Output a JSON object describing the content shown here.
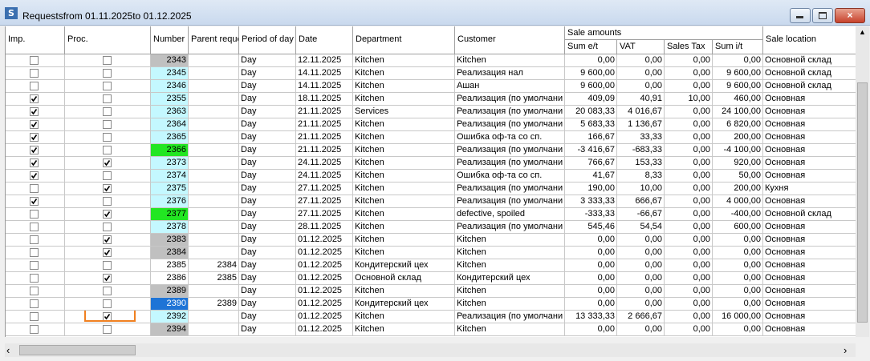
{
  "window": {
    "title": "Requestsfrom 01.11.2025to 01.12.2025"
  },
  "table": {
    "columns": [
      "Imp.",
      "Proc.",
      "Number",
      "Parent reque",
      "Period of day",
      "Date",
      "Department",
      "Customer",
      "Sum e/t",
      "VAT",
      "Sales Tax",
      "Sum i/t",
      "Sale location"
    ],
    "group_header": "Sale amounts",
    "rows": [
      {
        "imp": false,
        "proc": false,
        "number": "2343",
        "number_color": "#c0c0c0",
        "period": "Day",
        "date": "12.11.2025",
        "department": "Kitchen",
        "customer": "Kitchen",
        "sum_et": "0,00",
        "vat": "0,00",
        "sales_tax": "0,00",
        "sum_it": "0,00",
        "location": "Основной склад"
      },
      {
        "imp": false,
        "proc": false,
        "number": "2345",
        "number_color": "#c4f8ff",
        "period": "Day",
        "date": "14.11.2025",
        "department": "Kitchen",
        "customer": "Реализация нал",
        "sum_et": "9 600,00",
        "vat": "0,00",
        "sales_tax": "0,00",
        "sum_it": "9 600,00",
        "location": "Основной склад"
      },
      {
        "imp": false,
        "proc": false,
        "number": "2346",
        "number_color": "#c4f8ff",
        "period": "Day",
        "date": "14.11.2025",
        "department": "Kitchen",
        "customer": "Ашан",
        "sum_et": "9 600,00",
        "vat": "0,00",
        "sales_tax": "0,00",
        "sum_it": "9 600,00",
        "location": "Основной склад"
      },
      {
        "imp": true,
        "proc": false,
        "number": "2355",
        "number_color": "#c4f8ff",
        "period": "Day",
        "date": "18.11.2025",
        "department": "Kitchen",
        "customer": "Реализация (по умолчани",
        "sum_et": "409,09",
        "vat": "40,91",
        "sales_tax": "10,00",
        "sum_it": "460,00",
        "location": "Основная"
      },
      {
        "imp": true,
        "proc": false,
        "number": "2363",
        "number_color": "#c4f8ff",
        "period": "Day",
        "date": "21.11.2025",
        "department": "Services",
        "customer": "Реализация (по умолчани",
        "sum_et": "20 083,33",
        "vat": "4 016,67",
        "sales_tax": "0,00",
        "sum_it": "24 100,00",
        "location": "Основная"
      },
      {
        "imp": true,
        "proc": false,
        "number": "2364",
        "number_color": "#c4f8ff",
        "period": "Day",
        "date": "21.11.2025",
        "department": "Kitchen",
        "customer": "Реализация (по умолчани",
        "sum_et": "5 683,33",
        "vat": "1 136,67",
        "sales_tax": "0,00",
        "sum_it": "6 820,00",
        "location": "Основная"
      },
      {
        "imp": true,
        "proc": false,
        "number": "2365",
        "number_color": "#c4f8ff",
        "period": "Day",
        "date": "21.11.2025",
        "department": "Kitchen",
        "customer": "Ошибка оф-та со сп.",
        "sum_et": "166,67",
        "vat": "33,33",
        "sales_tax": "0,00",
        "sum_it": "200,00",
        "location": "Основная"
      },
      {
        "imp": true,
        "proc": false,
        "number": "2366",
        "number_color": "#22e622",
        "period": "Day",
        "date": "21.11.2025",
        "department": "Kitchen",
        "customer": "Реализация (по умолчани",
        "sum_et": "-3 416,67",
        "vat": "-683,33",
        "sales_tax": "0,00",
        "sum_it": "-4 100,00",
        "location": "Основная"
      },
      {
        "imp": true,
        "proc": true,
        "number": "2373",
        "number_color": "#c4f8ff",
        "period": "Day",
        "date": "24.11.2025",
        "department": "Kitchen",
        "customer": "Реализация (по умолчани",
        "sum_et": "766,67",
        "vat": "153,33",
        "sales_tax": "0,00",
        "sum_it": "920,00",
        "location": "Основная"
      },
      {
        "imp": true,
        "proc": false,
        "number": "2374",
        "number_color": "#c4f8ff",
        "period": "Day",
        "date": "24.11.2025",
        "department": "Kitchen",
        "customer": "Ошибка оф-та со сп.",
        "sum_et": "41,67",
        "vat": "8,33",
        "sales_tax": "0,00",
        "sum_it": "50,00",
        "location": "Основная"
      },
      {
        "imp": false,
        "proc": true,
        "number": "2375",
        "number_color": "#c4f8ff",
        "period": "Day",
        "date": "27.11.2025",
        "department": "Kitchen",
        "customer": "Реализация (по умолчани",
        "sum_et": "190,00",
        "vat": "10,00",
        "sales_tax": "0,00",
        "sum_it": "200,00",
        "location": "Кухня"
      },
      {
        "imp": true,
        "proc": false,
        "number": "2376",
        "number_color": "#c4f8ff",
        "period": "Day",
        "date": "27.11.2025",
        "department": "Kitchen",
        "customer": "Реализация (по умолчани",
        "sum_et": "3 333,33",
        "vat": "666,67",
        "sales_tax": "0,00",
        "sum_it": "4 000,00",
        "location": "Основная"
      },
      {
        "imp": false,
        "proc": true,
        "number": "2377",
        "number_color": "#22e622",
        "period": "Day",
        "date": "27.11.2025",
        "department": "Kitchen",
        "customer": "defective, spoiled",
        "sum_et": "-333,33",
        "vat": "-66,67",
        "sales_tax": "0,00",
        "sum_it": "-400,00",
        "location": "Основной склад"
      },
      {
        "imp": false,
        "proc": false,
        "number": "2378",
        "number_color": "#c4f8ff",
        "period": "Day",
        "date": "28.11.2025",
        "department": "Kitchen",
        "customer": "Реализация (по умолчани",
        "sum_et": "545,46",
        "vat": "54,54",
        "sales_tax": "0,00",
        "sum_it": "600,00",
        "location": "Основная"
      },
      {
        "imp": false,
        "proc": true,
        "number": "2383",
        "number_color": "#c0c0c0",
        "period": "Day",
        "date": "01.12.2025",
        "department": "Kitchen",
        "customer": "Kitchen",
        "sum_et": "0,00",
        "vat": "0,00",
        "sales_tax": "0,00",
        "sum_it": "0,00",
        "location": "Основная"
      },
      {
        "imp": false,
        "proc": true,
        "number": "2384",
        "number_color": "#c0c0c0",
        "period": "Day",
        "date": "01.12.2025",
        "department": "Kitchen",
        "customer": "Kitchen",
        "sum_et": "0,00",
        "vat": "0,00",
        "sales_tax": "0,00",
        "sum_it": "0,00",
        "location": "Основная"
      },
      {
        "imp": false,
        "proc": false,
        "number": "2385",
        "number_color": "#ffffff",
        "parent": "2384",
        "period": "Day",
        "date": "01.12.2025",
        "department": "Кондитерский цех",
        "customer": "Kitchen",
        "sum_et": "0,00",
        "vat": "0,00",
        "sales_tax": "0,00",
        "sum_it": "0,00",
        "location": "Основная"
      },
      {
        "imp": false,
        "proc": true,
        "number": "2386",
        "number_color": "#ffffff",
        "parent": "2385",
        "period": "Day",
        "date": "01.12.2025",
        "department": "Основной склад",
        "customer": "Кондитерский цех",
        "sum_et": "0,00",
        "vat": "0,00",
        "sales_tax": "0,00",
        "sum_it": "0,00",
        "location": "Основная"
      },
      {
        "imp": false,
        "proc": false,
        "number": "2389",
        "number_color": "#c0c0c0",
        "period": "Day",
        "date": "01.12.2025",
        "department": "Kitchen",
        "customer": "Kitchen",
        "sum_et": "0,00",
        "vat": "0,00",
        "sales_tax": "0,00",
        "sum_it": "0,00",
        "location": "Основная"
      },
      {
        "imp": false,
        "proc": false,
        "number": "2390",
        "number_color": "#1e74d6",
        "parent": "2389",
        "period": "Day",
        "date": "01.12.2025",
        "department": "Кондитерский цех",
        "customer": "Kitchen",
        "sum_et": "0,00",
        "vat": "0,00",
        "sales_tax": "0,00",
        "sum_it": "0,00",
        "location": "Основная"
      },
      {
        "imp": false,
        "proc": true,
        "proc_highlighted": true,
        "number": "2392",
        "number_color": "#c4f8ff",
        "period": "Day",
        "date": "01.12.2025",
        "department": "Kitchen",
        "customer": "Реализация (по умолчани",
        "sum_et": "13 333,33",
        "vat": "2 666,67",
        "sales_tax": "0,00",
        "sum_it": "16 000,00",
        "location": "Основная"
      },
      {
        "imp": false,
        "proc": false,
        "number": "2394",
        "number_color": "#c0c0c0",
        "period": "Day",
        "date": "01.12.2025",
        "department": "Kitchen",
        "customer": "Kitchen",
        "sum_et": "0,00",
        "vat": "0,00",
        "sales_tax": "0,00",
        "sum_it": "0,00",
        "location": "Основная"
      }
    ]
  }
}
